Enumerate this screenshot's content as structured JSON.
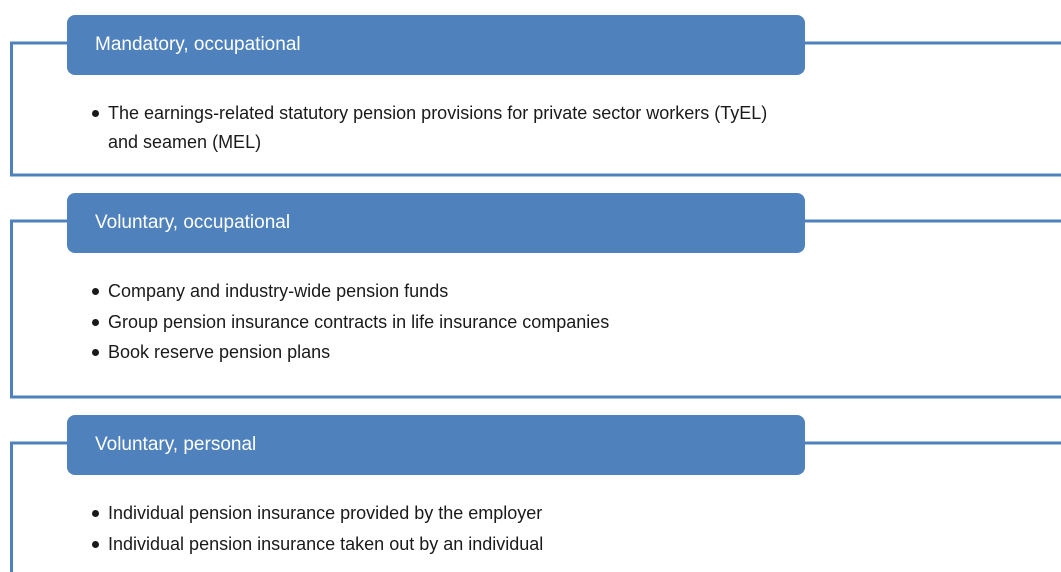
{
  "sections": [
    {
      "title": "Mandatory, occupational",
      "items": [
        "The earnings-related statutory pension provisions for private sector workers (TyEL) and seamen (MEL)"
      ]
    },
    {
      "title": "Voluntary, occupational",
      "items": [
        "Company and industry-wide pension funds",
        "Group pension insurance contracts in life insurance companies",
        "Book reserve pension plans"
      ]
    },
    {
      "title": "Voluntary, personal",
      "items": [
        "Individual pension insurance provided by the employer",
        "Individual pension insurance taken out by an individual"
      ]
    }
  ]
}
